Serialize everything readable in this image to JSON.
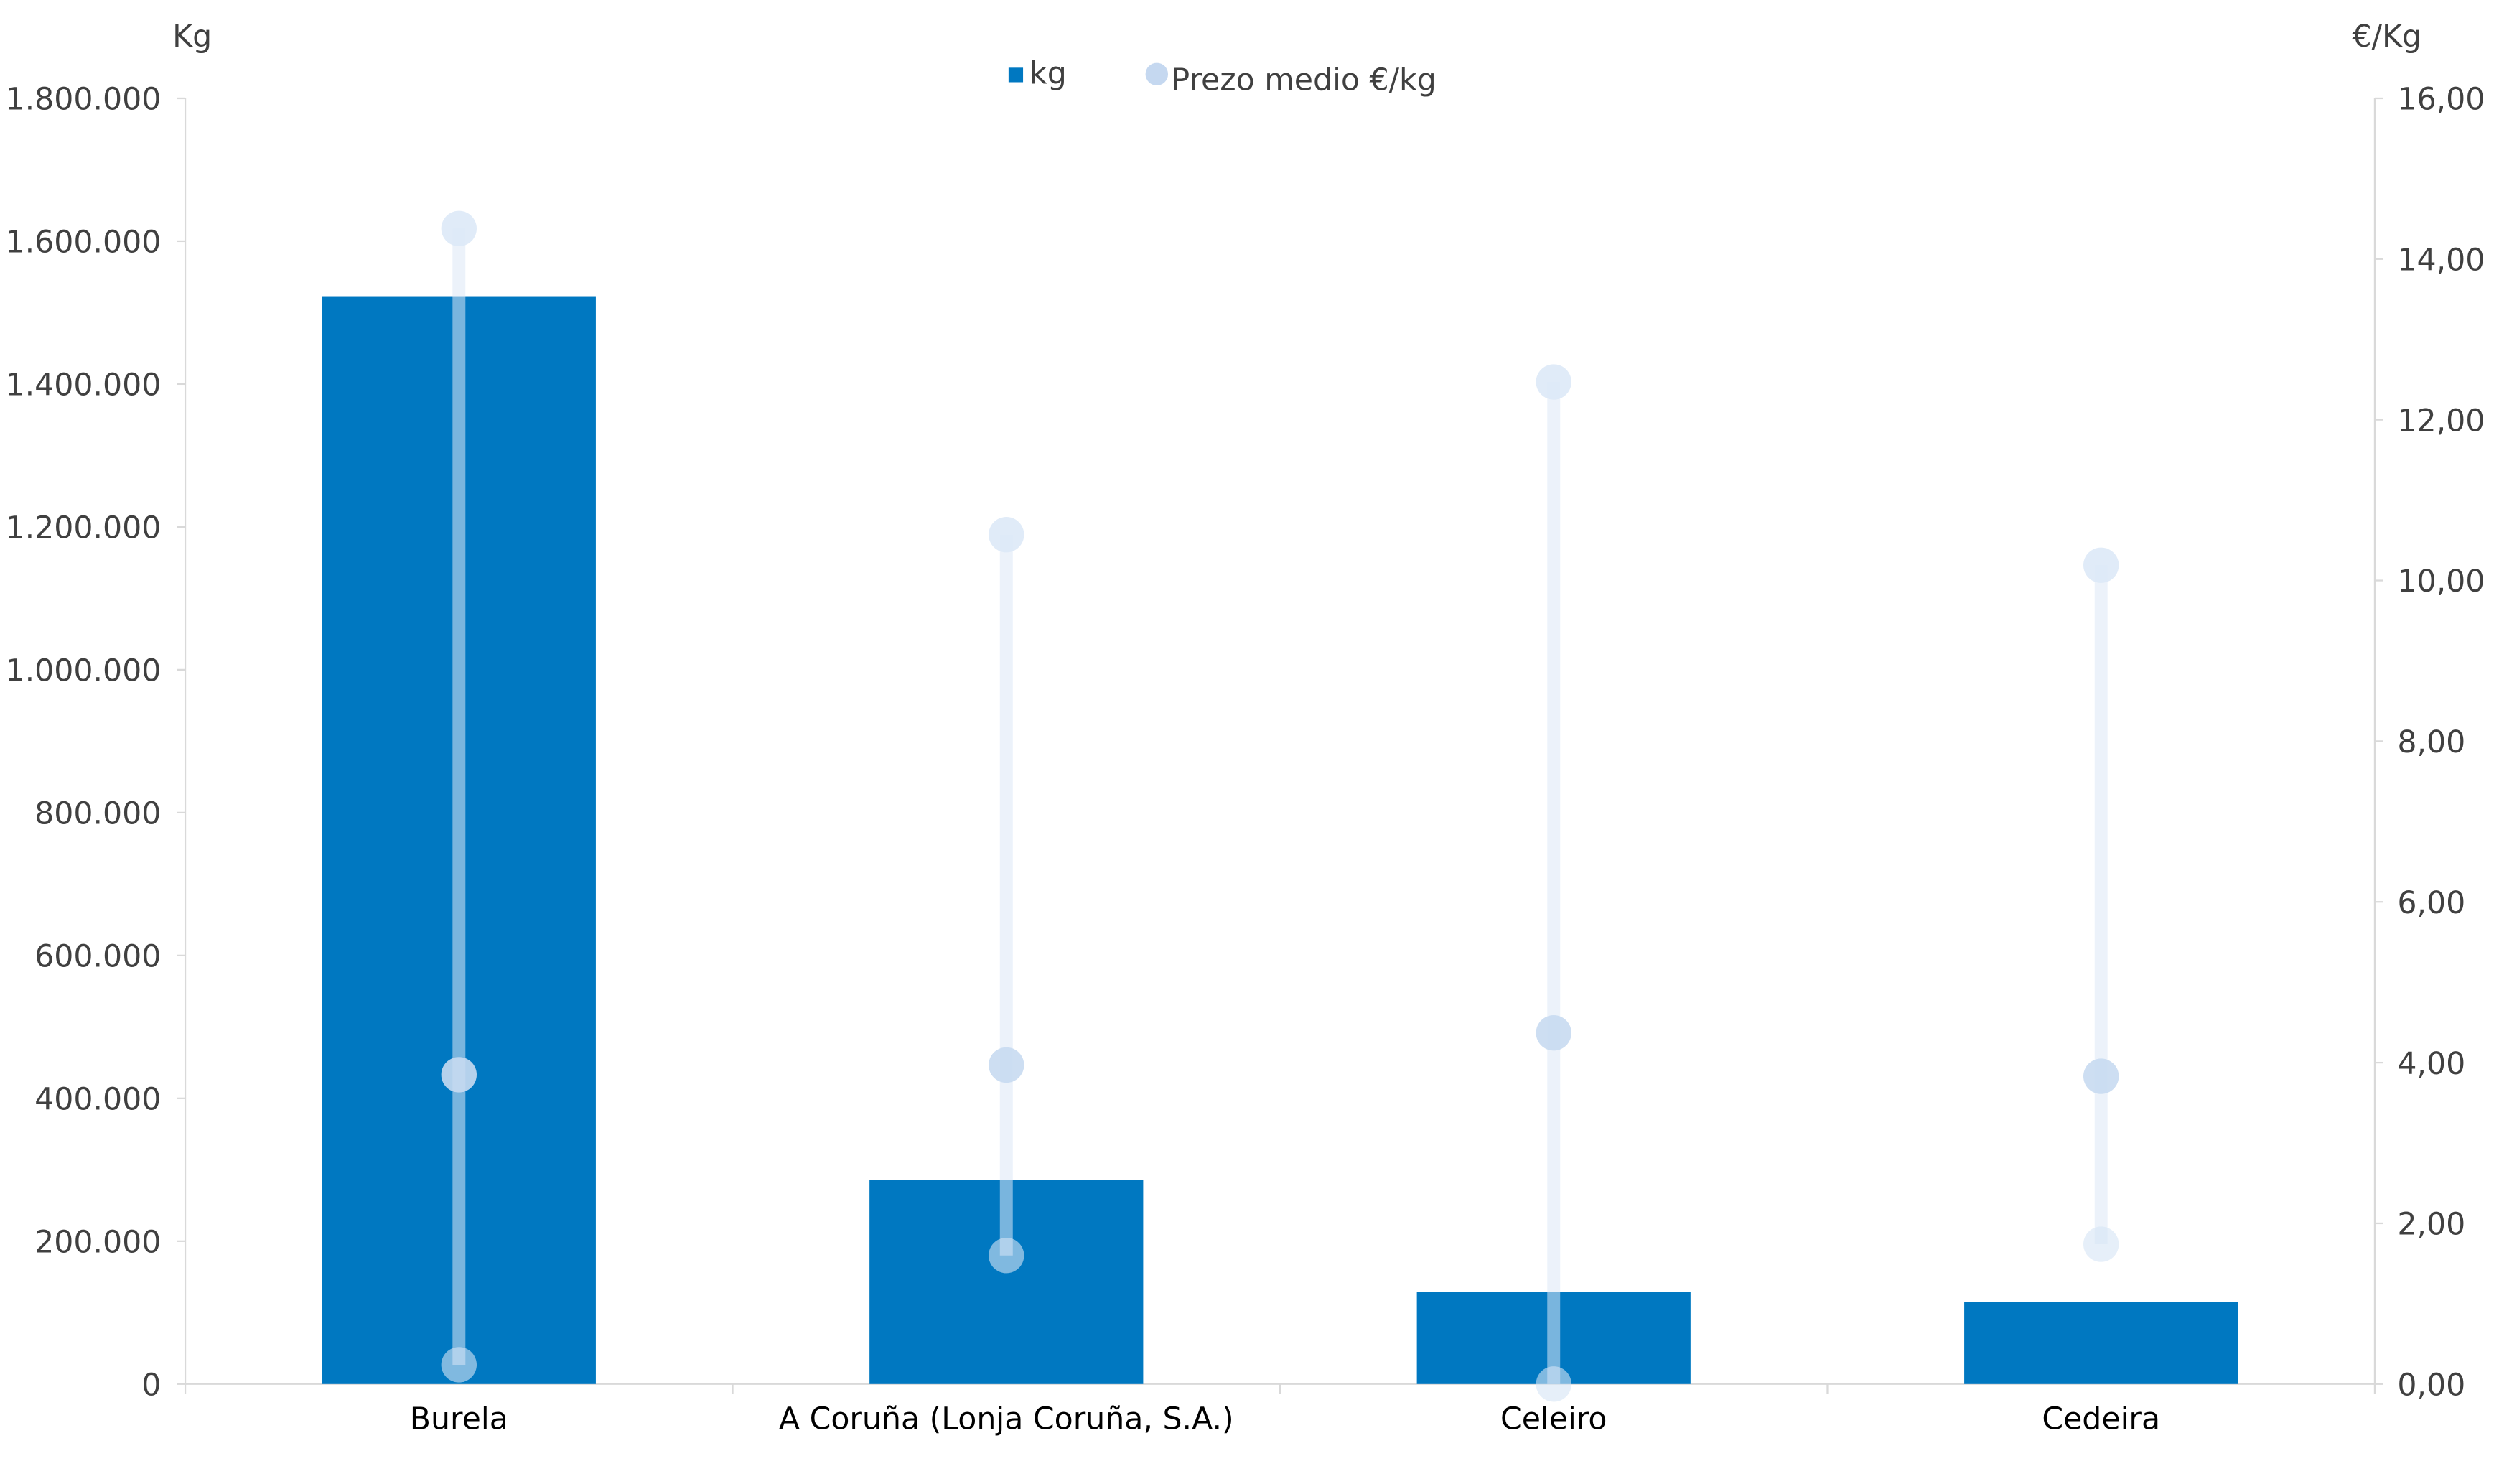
{
  "chart_data": {
    "type": "bar",
    "categories": [
      "Burela",
      "A Coruña (Lonja Coruña, S.A.)",
      "Celeiro",
      "Cedeira"
    ],
    "series": [
      {
        "name": "kg",
        "type": "bar",
        "axis": "left",
        "values": [
          1523000,
          286000,
          128600,
          115000
        ],
        "color": "#0078C1"
      },
      {
        "name": "Prezo medio €/kg",
        "type": "range-dot",
        "axis": "right",
        "max": [
          14.38,
          10.57,
          12.47,
          10.19
        ],
        "avg": [
          3.85,
          3.97,
          4.37,
          3.83
        ],
        "min": [
          0.24,
          1.6,
          0.0,
          1.74
        ],
        "color": "#C5D8F0"
      }
    ],
    "left_axis": {
      "label": "Kg",
      "ylim": [
        0,
        1800000
      ],
      "ticks": [
        "0",
        "200.000",
        "400.000",
        "600.000",
        "800.000",
        "1.000.000",
        "1.200.000",
        "1.400.000",
        "1.600.000",
        "1.800.000"
      ]
    },
    "right_axis": {
      "label": "€/Kg",
      "ylim": [
        0,
        16
      ],
      "ticks": [
        "0,00",
        "2,00",
        "4,00",
        "6,00",
        "8,00",
        "10,00",
        "12,00",
        "14,00",
        "16,00"
      ]
    },
    "legend": {
      "position": "top",
      "entries": [
        "kg",
        "Prezo medio €/kg"
      ]
    },
    "grid": false
  }
}
